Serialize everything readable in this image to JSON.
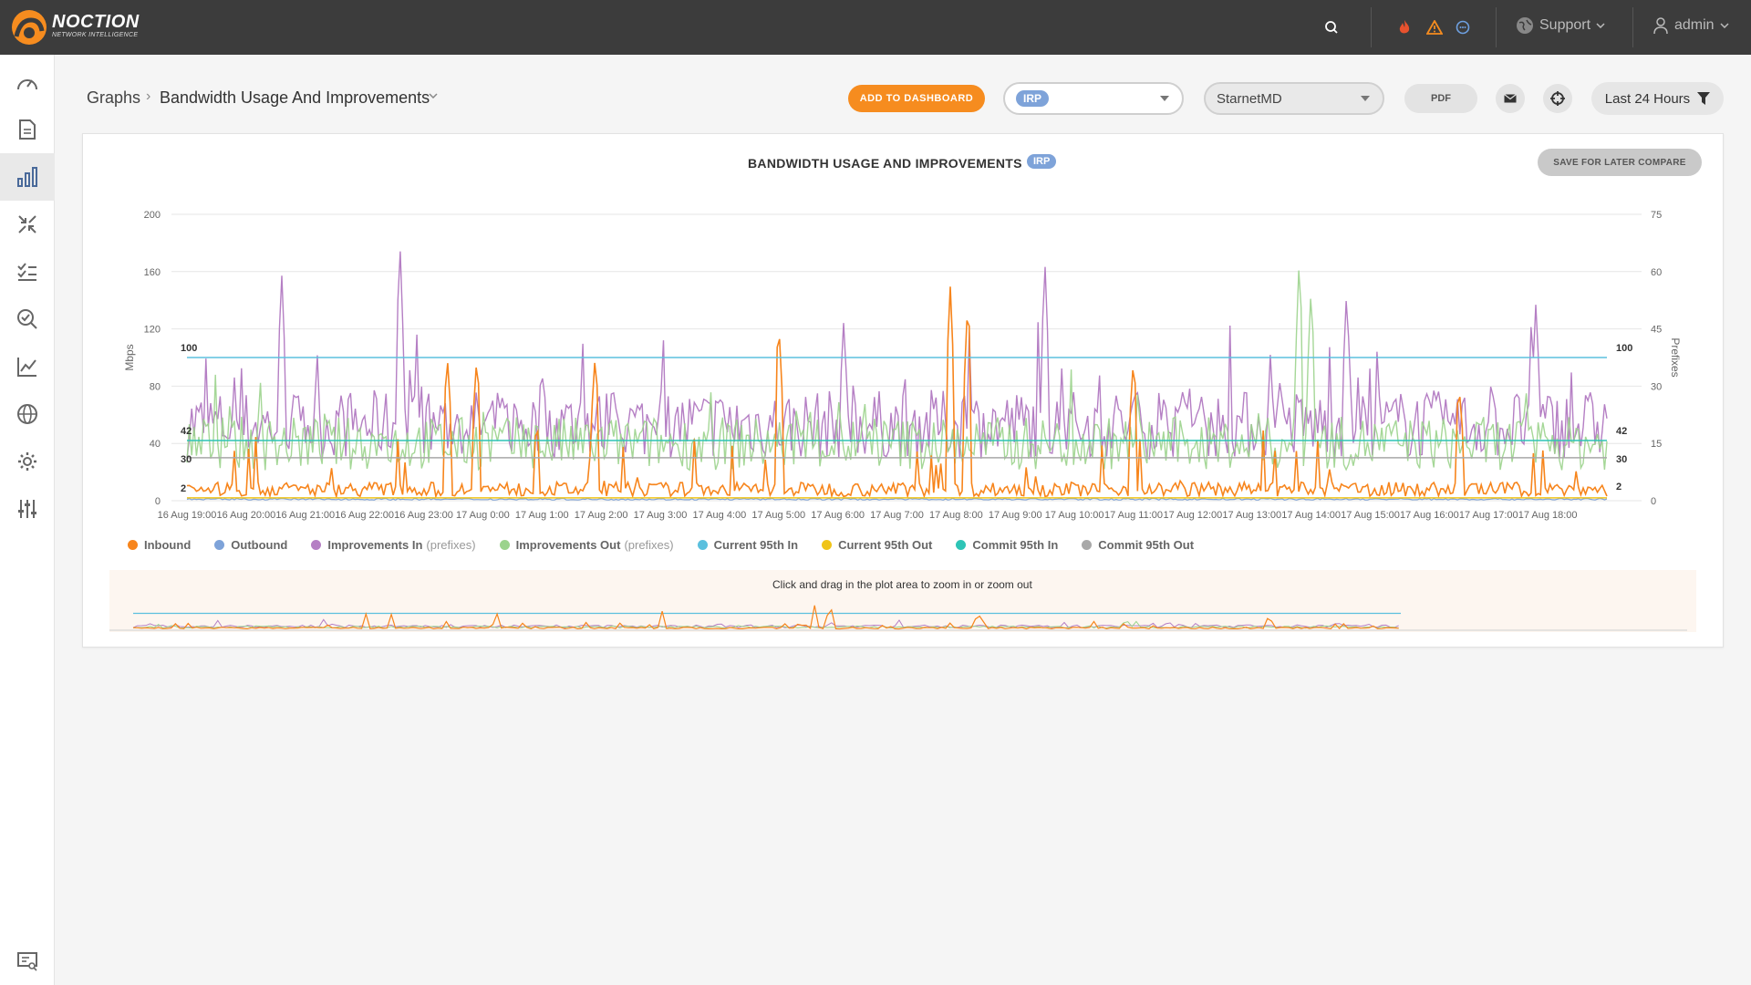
{
  "app": {
    "brand": "NOCTION",
    "brand_sub": "NETWORK INTELLIGENCE",
    "accent": "#f68c1f"
  },
  "topbar": {
    "support_label": "Support",
    "user_label": "admin",
    "icons": [
      "search-icon",
      "fire-icon",
      "warning-icon",
      "chat-icon",
      "globe-icon",
      "user-icon"
    ]
  },
  "sidebar": {
    "items": [
      "dashboard-icon",
      "reports-icon",
      "graphs-icon",
      "improvements-icon",
      "tasks-icon",
      "search-analysis-icon",
      "stats-icon",
      "network-icon",
      "settings-icon",
      "tuning-icon"
    ],
    "active": "graphs-icon",
    "footer": "console-icon"
  },
  "breadcrumb": {
    "root": "Graphs",
    "page": "Bandwidth Usage And Improvements"
  },
  "toolbar": {
    "add_dashboard": "ADD TO DASHBOARD",
    "tag_select": "IRP",
    "site_select": "StarnetMD",
    "pdf": "PDF",
    "range": "Last 24 Hours"
  },
  "chart_panel": {
    "title": "BANDWIDTH USAGE AND IMPROVEMENTS",
    "tag": "IRP",
    "save_btn": "SAVE FOR LATER COMPARE",
    "nav_hint": "Click and drag in the plot area to zoom in or zoom out"
  },
  "chart_data": {
    "type": "line",
    "title": "BANDWIDTH USAGE AND IMPROVEMENTS",
    "ylabel": "Mbps",
    "y2label": "Prefixes",
    "ylim": [
      0,
      200
    ],
    "y2lim": [
      0,
      75
    ],
    "yticks": [
      0,
      40,
      80,
      120,
      160,
      200
    ],
    "y2ticks": [
      0,
      15,
      30,
      45,
      60,
      75
    ],
    "x_ticks": [
      "16 Aug 19:00",
      "16 Aug 20:00",
      "16 Aug 21:00",
      "16 Aug 22:00",
      "16 Aug 23:00",
      "17 Aug 0:00",
      "17 Aug 1:00",
      "17 Aug 2:00",
      "17 Aug 3:00",
      "17 Aug 4:00",
      "17 Aug 5:00",
      "17 Aug 6:00",
      "17 Aug 7:00",
      "17 Aug 8:00",
      "17 Aug 9:00",
      "17 Aug 10:00",
      "17 Aug 11:00",
      "17 Aug 12:00",
      "17 Aug 13:00",
      "17 Aug 14:00",
      "17 Aug 15:00",
      "17 Aug 16:00",
      "17 Aug 17:00",
      "17 Aug 18:00"
    ],
    "reference_labels_left": [
      "100",
      "42",
      "30",
      "2"
    ],
    "reference_labels_right": [
      "100",
      "42",
      "30",
      "2"
    ],
    "series": [
      {
        "name": "Inbound",
        "color": "#f7851c",
        "typical": 8,
        "peaks": [
          [
            4.4,
            101
          ],
          [
            4.9,
            101
          ],
          [
            6.9,
            102
          ],
          [
            10.0,
            127
          ],
          [
            12.9,
            151
          ],
          [
            13.2,
            143
          ],
          [
            16.0,
            100
          ],
          [
            21.5,
            81
          ]
        ]
      },
      {
        "name": "Outbound",
        "color": "#7ea3d9",
        "typical": 1
      },
      {
        "name": "Improvements In",
        "suffix": "(prefixes)",
        "color": "#b57fc4",
        "typical_prefixes": 20,
        "peaks": [
          [
            1.6,
            60
          ],
          [
            3.6,
            68
          ],
          [
            11.1,
            47
          ],
          [
            14.5,
            63
          ],
          [
            19.6,
            55
          ],
          [
            22.8,
            52
          ]
        ]
      },
      {
        "name": "Improvements Out",
        "suffix": "(prefixes)",
        "color": "#9bd38c",
        "typical_prefixes": 15,
        "peaks": [
          [
            18.8,
            64
          ],
          [
            19.0,
            56
          ]
        ]
      },
      {
        "name": "Current 95th In",
        "color": "#5bc0de",
        "value": 100
      },
      {
        "name": "Current 95th Out",
        "color": "#f0c419",
        "value": 2
      },
      {
        "name": "Commit 95th In",
        "color": "#2ec4b6",
        "value": 42
      },
      {
        "name": "Commit 95th Out",
        "color": "#a8a8a8",
        "value": 30
      }
    ],
    "grid": true,
    "legend_position": "bottom"
  }
}
